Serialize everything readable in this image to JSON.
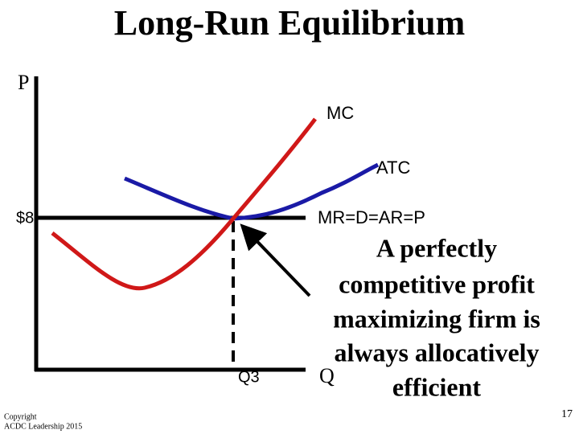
{
  "title": "Long-Run Equilibrium",
  "axes": {
    "price": "P",
    "quantity": "Q"
  },
  "curves": {
    "mc": "MC",
    "atc": "ATC",
    "mr": "MR=D=AR=P"
  },
  "equilibrium": {
    "price": "$8",
    "quantity": "Q3"
  },
  "annotation": [
    "A perfectly",
    "competitive profit",
    "maximizing firm is",
    "always allocatively",
    "efficient"
  ],
  "footer": {
    "copyright": [
      "Copyright",
      "ACDC Leadership 2015"
    ],
    "page_number": "17"
  }
}
